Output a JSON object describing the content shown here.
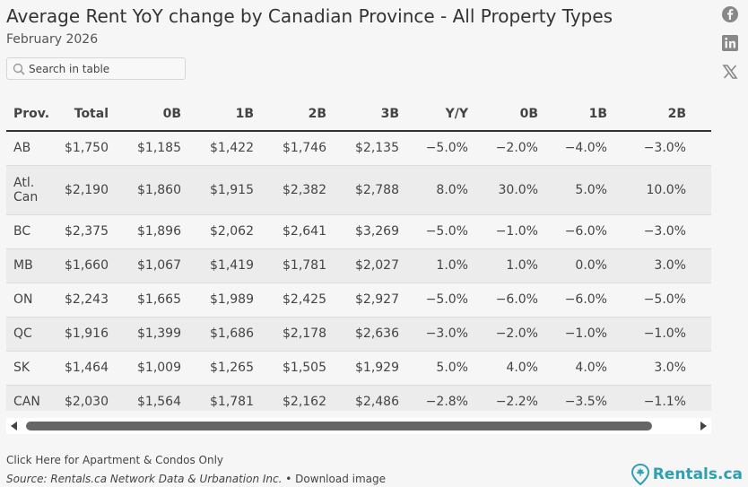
{
  "header": {
    "title": "Average Rent YoY change by Canadian Province - All Property Types",
    "subtitle": "February 2026"
  },
  "social": {
    "icons": [
      "facebook-icon",
      "linkedin-icon",
      "x-icon"
    ]
  },
  "search": {
    "placeholder": "Search in table"
  },
  "chart_data": {
    "type": "table",
    "columns": [
      "Prov.",
      "Total",
      "0B",
      "1B",
      "2B",
      "3B",
      "Y/Y",
      "0B",
      "1B",
      "2B"
    ],
    "rows": [
      [
        "AB",
        "$1,750",
        "$1,185",
        "$1,422",
        "$1,746",
        "$2,135",
        "−5.0%",
        "−2.0%",
        "−4.0%",
        "−3.0%"
      ],
      [
        "Atl. Can",
        "$2,190",
        "$1,860",
        "$1,915",
        "$2,382",
        "$2,788",
        "8.0%",
        "30.0%",
        "5.0%",
        "10.0%"
      ],
      [
        "BC",
        "$2,375",
        "$1,896",
        "$2,062",
        "$2,641",
        "$3,269",
        "−5.0%",
        "−1.0%",
        "−6.0%",
        "−3.0%"
      ],
      [
        "MB",
        "$1,660",
        "$1,067",
        "$1,419",
        "$1,781",
        "$2,027",
        "1.0%",
        "1.0%",
        "0.0%",
        "3.0%"
      ],
      [
        "ON",
        "$2,243",
        "$1,665",
        "$1,989",
        "$2,425",
        "$2,927",
        "−5.0%",
        "−6.0%",
        "−6.0%",
        "−5.0%"
      ],
      [
        "QC",
        "$1,916",
        "$1,399",
        "$1,686",
        "$2,178",
        "$2,636",
        "−3.0%",
        "−2.0%",
        "−1.0%",
        "−1.0%"
      ],
      [
        "SK",
        "$1,464",
        "$1,009",
        "$1,265",
        "$1,505",
        "$1,929",
        "5.0%",
        "4.0%",
        "4.0%",
        "3.0%"
      ],
      [
        "CAN",
        "$2,030",
        "$1,564",
        "$1,781",
        "$2,162",
        "$2,486",
        "−2.8%",
        "−2.2%",
        "−3.5%",
        "−1.1%"
      ]
    ],
    "title": "Average Rent YoY change by Canadian Province - All Property Types",
    "subtitle": "February 2026"
  },
  "footer": {
    "link": "Click Here for Apartment & Condos Only",
    "source": "Source: Rentals.ca Network Data & Urbanation Inc.",
    "download": "• Download image",
    "brand": "Rentals.ca"
  },
  "colors": {
    "brand": "#2f9fb2",
    "text": "#333333",
    "row_alt": "#ececec"
  }
}
